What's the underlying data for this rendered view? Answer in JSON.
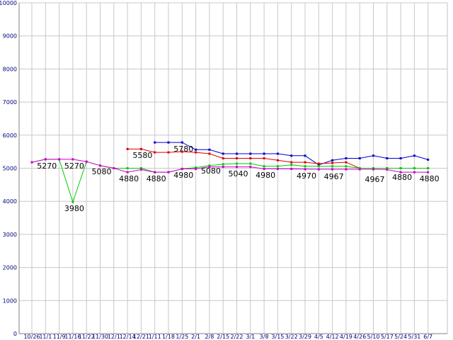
{
  "chart_data": {
    "type": "line",
    "title": "",
    "xlabel": "",
    "ylabel": "",
    "ylim": [
      0,
      10000
    ],
    "yticks": [
      0,
      1000,
      2000,
      3000,
      4000,
      5000,
      6000,
      7000,
      8000,
      9000,
      10000
    ],
    "grid": true,
    "legend": "none",
    "categories": [
      "10/26",
      "11/1",
      "11/9",
      "11/16",
      "11/22",
      "11/30",
      "12/1",
      "12/14",
      "12/21",
      "1/11",
      "1/18",
      "1/25",
      "2/1",
      "2/8",
      "2/15",
      "2/22",
      "3/1",
      "3/8",
      "3/15",
      "3/22",
      "3/29",
      "4/5",
      "4/12",
      "4/19",
      "4/26",
      "5/10",
      "5/17",
      "5/24",
      "5/31",
      "6/7"
    ],
    "xtick_labels": [
      "10/26",
      "11/1",
      "11/9",
      "11/16",
      "11/22",
      "11/30",
      "12/1",
      "12/14",
      "12/21",
      "1/11",
      "1/18",
      "1/25",
      "2/1",
      "2/8",
      "2/15",
      "2/22",
      "3/1",
      "3/8",
      "3/15",
      "3/22",
      "3/29",
      "4/5",
      "4/12",
      "4/19",
      "4/26",
      "5/10",
      "5/17",
      "5/24",
      "5/31",
      "6/7"
    ],
    "series": [
      {
        "color": "#0000cc",
        "values": [
          null,
          null,
          null,
          null,
          null,
          null,
          null,
          null,
          null,
          5780,
          5780,
          5780,
          5560,
          5560,
          5440,
          5440,
          5440,
          5440,
          5440,
          5380,
          5380,
          5100,
          5240,
          5300,
          5300,
          5380,
          5300,
          5300,
          5380,
          5260
        ]
      },
      {
        "color": "#dd0000",
        "values": [
          null,
          null,
          null,
          null,
          null,
          null,
          null,
          5580,
          5580,
          5480,
          5480,
          5500,
          5480,
          5440,
          5300,
          5300,
          5300,
          5300,
          5240,
          5180,
          5180,
          5140,
          5160,
          5180,
          5000,
          5000,
          5000,
          5000,
          5000,
          5000
        ]
      },
      {
        "color": "#00cc00",
        "values": [
          5180,
          5270,
          5270,
          3980,
          5200,
          5080,
          5000,
          5000,
          5000,
          4880,
          4880,
          4980,
          5020,
          5080,
          5120,
          5140,
          5140,
          5060,
          5060,
          5100,
          5060,
          5060,
          5060,
          5060,
          5000,
          5000,
          5000,
          5000,
          5000,
          5000
        ]
      },
      {
        "color": "#cc00cc",
        "values": [
          5180,
          5270,
          5270,
          5270,
          5200,
          5080,
          5000,
          4880,
          4960,
          4880,
          4880,
          4980,
          4980,
          5040,
          5040,
          5040,
          5040,
          4980,
          4980,
          4980,
          4970,
          4967,
          4967,
          4967,
          4967,
          4967,
          4960,
          4880,
          4880,
          4880
        ]
      }
    ],
    "data_labels": [
      {
        "i": 1,
        "text": "5270"
      },
      {
        "i": 3,
        "text": "5270"
      },
      {
        "i": 3,
        "text": "3980"
      },
      {
        "i": 5,
        "text": "5080"
      },
      {
        "i": 7,
        "text": "4880"
      },
      {
        "i": 8,
        "text": "5580"
      },
      {
        "i": 9,
        "text": "4880"
      },
      {
        "i": 11,
        "text": "4980"
      },
      {
        "i": 11,
        "text": "5780"
      },
      {
        "i": 13,
        "text": "5080"
      },
      {
        "i": 15,
        "text": "5040"
      },
      {
        "i": 17,
        "text": "4980"
      },
      {
        "i": 20,
        "text": "4970"
      },
      {
        "i": 22,
        "text": "4967"
      },
      {
        "i": 25,
        "text": "4967"
      },
      {
        "i": 27,
        "text": "4880"
      },
      {
        "i": 29,
        "text": "4880"
      }
    ]
  }
}
